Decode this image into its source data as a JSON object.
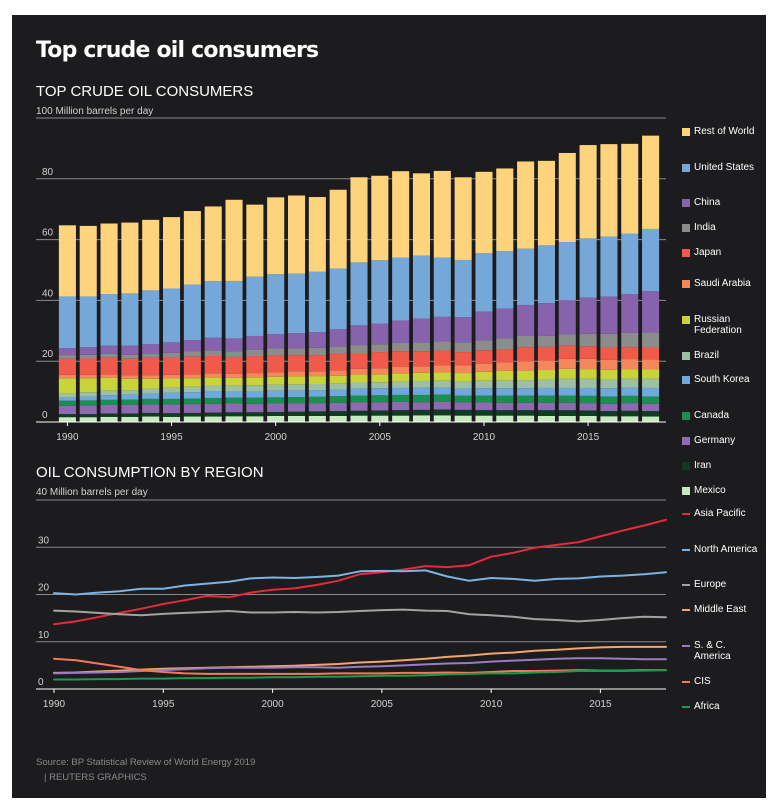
{
  "header": {
    "title": "Top crude oil consumers"
  },
  "chart_data": [
    {
      "type": "bar",
      "stacked": true,
      "title": "TOP CRUDE OIL CONSUMERS",
      "ylabel": "100 Million barrels per day",
      "ylim": [
        0,
        100
      ],
      "yticks": [
        0,
        20,
        40,
        60,
        80
      ],
      "ytick_labels": [
        "0",
        "20",
        "40",
        "60",
        "80"
      ],
      "categories": [
        1990,
        1991,
        1992,
        1993,
        1994,
        1995,
        1996,
        1997,
        1998,
        1999,
        2000,
        2001,
        2002,
        2003,
        2004,
        2005,
        2006,
        2007,
        2008,
        2009,
        2010,
        2011,
        2012,
        2013,
        2014,
        2015,
        2016,
        2017,
        2018
      ],
      "xticks": [
        "1990",
        "1995",
        "2000",
        "2005",
        "2010",
        "2015"
      ],
      "legend_position": "right",
      "series": [
        {
          "name": "Mexico",
          "color": "#c7e9c0",
          "values": [
            1.6,
            1.6,
            1.7,
            1.7,
            1.8,
            1.7,
            1.8,
            1.8,
            1.9,
            1.9,
            2.0,
            2.0,
            2.0,
            2.0,
            2.1,
            2.1,
            2.1,
            2.2,
            2.2,
            2.1,
            2.1,
            2.1,
            2.1,
            2.0,
            2.0,
            2.0,
            1.9,
            1.9,
            1.8
          ]
        },
        {
          "name": "Iran",
          "color": "#0f3d22",
          "values": [
            1.0,
            1.0,
            1.1,
            1.1,
            1.2,
            1.2,
            1.2,
            1.3,
            1.3,
            1.3,
            1.3,
            1.4,
            1.5,
            1.6,
            1.6,
            1.7,
            1.8,
            1.8,
            1.9,
            1.9,
            1.8,
            1.8,
            1.8,
            1.9,
            1.9,
            1.8,
            1.7,
            1.8,
            1.8
          ]
        },
        {
          "name": "Germany",
          "color": "#8e6bb0",
          "values": [
            2.7,
            2.8,
            2.8,
            2.9,
            2.8,
            2.9,
            2.9,
            2.9,
            2.9,
            2.8,
            2.8,
            2.8,
            2.7,
            2.7,
            2.7,
            2.7,
            2.7,
            2.5,
            2.6,
            2.5,
            2.5,
            2.4,
            2.4,
            2.4,
            2.4,
            2.4,
            2.4,
            2.5,
            2.4
          ]
        },
        {
          "name": "Canada",
          "color": "#1a8f4f",
          "values": [
            1.7,
            1.7,
            1.7,
            1.7,
            1.8,
            1.8,
            1.8,
            1.9,
            1.9,
            2.0,
            2.0,
            2.0,
            2.1,
            2.2,
            2.3,
            2.3,
            2.3,
            2.4,
            2.3,
            2.2,
            2.3,
            2.4,
            2.4,
            2.4,
            2.4,
            2.4,
            2.4,
            2.4,
            2.4
          ]
        },
        {
          "name": "South Korea",
          "color": "#6fa8dc",
          "values": [
            1.0,
            1.2,
            1.5,
            1.6,
            1.8,
            2.0,
            2.1,
            2.3,
            2.0,
            2.2,
            2.2,
            2.2,
            2.2,
            2.2,
            2.3,
            2.3,
            2.3,
            2.4,
            2.3,
            2.3,
            2.4,
            2.4,
            2.4,
            2.5,
            2.5,
            2.6,
            2.7,
            2.7,
            2.8
          ]
        },
        {
          "name": "Brazil",
          "color": "#9dbfa4",
          "values": [
            1.4,
            1.5,
            1.5,
            1.5,
            1.6,
            1.7,
            1.8,
            1.8,
            1.9,
            1.9,
            2.0,
            2.0,
            2.0,
            1.9,
            2.0,
            2.0,
            2.1,
            2.2,
            2.3,
            2.3,
            2.5,
            2.6,
            2.7,
            2.8,
            3.0,
            3.0,
            2.9,
            2.9,
            3.0
          ]
        },
        {
          "name": "Russian Federation",
          "color": "#c8d43a",
          "values": [
            5.0,
            4.6,
            4.2,
            3.7,
            3.2,
            3.0,
            2.8,
            2.7,
            2.6,
            2.6,
            2.6,
            2.6,
            2.6,
            2.6,
            2.6,
            2.6,
            2.7,
            2.7,
            2.8,
            2.8,
            2.9,
            3.1,
            3.1,
            3.1,
            3.3,
            3.2,
            3.2,
            3.2,
            3.2
          ]
        },
        {
          "name": "Saudi Arabia",
          "color": "#f4885c",
          "values": [
            1.1,
            1.1,
            1.1,
            1.2,
            1.2,
            1.2,
            1.3,
            1.3,
            1.4,
            1.4,
            1.5,
            1.6,
            1.6,
            1.8,
            1.9,
            2.0,
            2.1,
            2.1,
            2.3,
            2.5,
            2.7,
            2.8,
            3.0,
            3.1,
            3.3,
            3.4,
            3.3,
            3.3,
            3.2
          ]
        },
        {
          "name": "Japan",
          "color": "#f05a4a",
          "values": [
            5.3,
            5.4,
            5.5,
            5.4,
            5.7,
            5.7,
            5.8,
            5.7,
            5.5,
            5.6,
            5.5,
            5.4,
            5.3,
            5.4,
            5.2,
            5.3,
            5.2,
            5.0,
            4.8,
            4.4,
            4.4,
            4.4,
            4.7,
            4.5,
            4.3,
            4.1,
            4.0,
            3.9,
            3.9
          ]
        },
        {
          "name": "India",
          "color": "#8c8c8c",
          "values": [
            1.2,
            1.2,
            1.3,
            1.3,
            1.4,
            1.6,
            1.7,
            1.8,
            1.9,
            2.1,
            2.3,
            2.3,
            2.4,
            2.5,
            2.6,
            2.6,
            2.7,
            2.9,
            3.1,
            3.2,
            3.3,
            3.5,
            3.7,
            3.7,
            3.8,
            4.1,
            4.5,
            4.7,
            5.0
          ]
        },
        {
          "name": "China",
          "color": "#8763ad",
          "values": [
            2.3,
            2.5,
            2.7,
            3.0,
            3.1,
            3.4,
            3.7,
            4.2,
            4.2,
            4.5,
            4.7,
            4.9,
            5.2,
            5.6,
            6.5,
            6.8,
            7.4,
            7.8,
            8.0,
            8.3,
            9.4,
            9.8,
            10.2,
            10.7,
            11.2,
            11.9,
            12.3,
            12.8,
            13.5
          ]
        },
        {
          "name": "United States",
          "color": "#75a8d8",
          "values": [
            17.0,
            16.7,
            17.0,
            17.2,
            17.7,
            17.7,
            18.3,
            18.6,
            18.9,
            19.5,
            19.7,
            19.6,
            19.8,
            20.0,
            20.7,
            20.8,
            20.7,
            20.7,
            19.5,
            18.8,
            19.2,
            18.9,
            18.5,
            19.0,
            19.1,
            19.5,
            19.7,
            19.9,
            20.5
          ]
        },
        {
          "name": "Rest of World",
          "color": "#fdd37b",
          "values": [
            23.4,
            23.2,
            23.2,
            23.3,
            23.2,
            23.5,
            24.2,
            24.6,
            26.7,
            23.7,
            25.3,
            25.7,
            24.6,
            25.9,
            28.0,
            27.8,
            28.4,
            27.1,
            28.5,
            27.2,
            26.8,
            27.2,
            28.7,
            27.8,
            29.3,
            30.7,
            30.4,
            29.5,
            30.7
          ]
        }
      ]
    },
    {
      "type": "line",
      "title": "OIL CONSUMPTION BY REGION",
      "ylabel": "40 Million barrels per day",
      "ylim": [
        0,
        40
      ],
      "yticks": [
        0,
        10,
        20,
        30
      ],
      "ytick_labels": [
        "0",
        "10",
        "20",
        "30"
      ],
      "x": [
        1990,
        1991,
        1992,
        1993,
        1994,
        1995,
        1996,
        1997,
        1998,
        1999,
        2000,
        2001,
        2002,
        2003,
        2004,
        2005,
        2006,
        2007,
        2008,
        2009,
        2010,
        2011,
        2012,
        2013,
        2014,
        2015,
        2016,
        2017,
        2018
      ],
      "xticks": [
        "1990",
        "1995",
        "2000",
        "2005",
        "2010",
        "2015"
      ],
      "legend_position": "right",
      "series": [
        {
          "name": "Asia Pacific",
          "color": "#e8293d",
          "values": [
            13.7,
            14.3,
            15.2,
            16.1,
            17.0,
            18.0,
            18.8,
            19.7,
            19.4,
            20.4,
            21.0,
            21.3,
            22.0,
            22.9,
            24.3,
            24.7,
            25.3,
            26.0,
            25.8,
            26.2,
            28.0,
            28.8,
            29.9,
            30.5,
            31.1,
            32.3,
            33.5,
            34.6,
            35.8
          ]
        },
        {
          "name": "North America",
          "color": "#7ab3e6",
          "values": [
            20.3,
            20.0,
            20.4,
            20.7,
            21.2,
            21.2,
            21.9,
            22.3,
            22.7,
            23.4,
            23.6,
            23.5,
            23.7,
            24.0,
            24.9,
            25.0,
            24.9,
            25.1,
            23.8,
            22.9,
            23.5,
            23.3,
            22.9,
            23.3,
            23.4,
            23.8,
            24.0,
            24.3,
            24.7
          ]
        },
        {
          "name": "Europe",
          "color": "#a3a3a3",
          "values": [
            16.6,
            16.4,
            16.1,
            15.8,
            15.6,
            15.9,
            16.1,
            16.3,
            16.5,
            16.2,
            16.2,
            16.3,
            16.2,
            16.3,
            16.5,
            16.7,
            16.8,
            16.6,
            16.5,
            15.8,
            15.6,
            15.3,
            14.8,
            14.6,
            14.3,
            14.6,
            15.0,
            15.3,
            15.2
          ]
        },
        {
          "name": "Middle East",
          "color": "#f4a56b",
          "values": [
            3.4,
            3.5,
            3.7,
            3.9,
            4.1,
            4.3,
            4.4,
            4.5,
            4.6,
            4.7,
            4.8,
            4.9,
            5.1,
            5.3,
            5.6,
            5.8,
            6.1,
            6.4,
            6.8,
            7.1,
            7.5,
            7.7,
            8.1,
            8.3,
            8.6,
            8.8,
            8.9,
            8.9,
            8.9
          ]
        },
        {
          "name": "S. & C. America",
          "color": "#9b7bc4",
          "values": [
            3.3,
            3.4,
            3.5,
            3.6,
            3.8,
            4.0,
            4.2,
            4.4,
            4.5,
            4.5,
            4.5,
            4.6,
            4.6,
            4.5,
            4.7,
            4.8,
            5.0,
            5.2,
            5.4,
            5.5,
            5.8,
            6.0,
            6.2,
            6.4,
            6.5,
            6.5,
            6.4,
            6.3,
            6.3
          ]
        },
        {
          "name": "CIS",
          "color": "#f07a5a",
          "values": [
            6.4,
            6.1,
            5.4,
            4.7,
            4.0,
            3.6,
            3.3,
            3.2,
            3.2,
            3.2,
            3.2,
            3.2,
            3.2,
            3.3,
            3.3,
            3.3,
            3.4,
            3.4,
            3.5,
            3.4,
            3.6,
            3.8,
            3.8,
            3.9,
            4.0,
            3.9,
            3.9,
            4.0,
            4.0
          ]
        },
        {
          "name": "Africa",
          "color": "#1e9a4e",
          "values": [
            2.0,
            2.0,
            2.1,
            2.1,
            2.2,
            2.2,
            2.3,
            2.3,
            2.4,
            2.4,
            2.5,
            2.5,
            2.6,
            2.6,
            2.7,
            2.8,
            2.8,
            2.9,
            3.1,
            3.2,
            3.3,
            3.3,
            3.5,
            3.6,
            3.8,
            3.8,
            3.8,
            3.9,
            4.0
          ]
        }
      ]
    }
  ],
  "footer": {
    "source": "Source: BP Statistical Review of World Energy 2019",
    "credit": "| REUTERS GRAPHICS"
  }
}
